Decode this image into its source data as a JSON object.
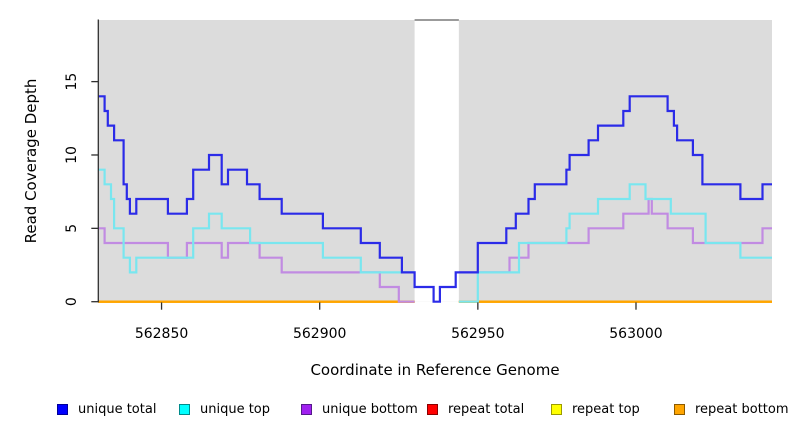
{
  "chart_data": {
    "type": "step-line",
    "xlabel": "Coordinate in Reference Genome",
    "ylabel": "Read Coverage Depth",
    "x_ticks": [
      562850,
      562900,
      562950,
      563000
    ],
    "y_ticks": [
      0,
      5,
      10,
      15
    ],
    "xlim": [
      562830,
      563043
    ],
    "ylim": [
      0,
      19.2
    ],
    "plot_background": "#DCDCDC",
    "gap": {
      "start": 562930,
      "end": 562944,
      "fill": "#FFFFFF",
      "top_border": "#7A7A7A"
    },
    "legend_position": "bottom",
    "series": [
      {
        "name": "repeat total",
        "color": "#FF0000",
        "width": 2.0,
        "segments": [
          [
            [
              562830,
              0
            ],
            [
              562930,
              0
            ]
          ],
          [
            [
              562944,
              0
            ],
            [
              563043,
              0
            ]
          ]
        ]
      },
      {
        "name": "repeat top",
        "color": "#FFFF00",
        "width": 2.0,
        "segments": [
          [
            [
              562830,
              0
            ],
            [
              562930,
              0
            ]
          ],
          [
            [
              562944,
              0
            ],
            [
              563043,
              0
            ]
          ]
        ]
      },
      {
        "name": "repeat bottom",
        "color": "#FFA500",
        "width": 2.4,
        "segments": [
          [
            [
              562830,
              0
            ],
            [
              562930,
              0
            ]
          ],
          [
            [
              562944,
              0
            ],
            [
              563043,
              0
            ]
          ]
        ]
      },
      {
        "name": "unique bottom",
        "color": "#C18BE2",
        "width": 2.2,
        "segments": [
          [
            [
              562830,
              5
            ],
            [
              562832,
              4
            ],
            [
              562852,
              3
            ],
            [
              562858,
              4
            ],
            [
              562869,
              3
            ],
            [
              562871,
              4
            ],
            [
              562881,
              3
            ],
            [
              562888,
              2
            ],
            [
              562919,
              1
            ],
            [
              562925,
              0
            ],
            [
              562930,
              0
            ]
          ],
          [
            [
              562944,
              2
            ],
            [
              562960,
              3
            ],
            [
              562966,
              4
            ],
            [
              562985,
              5
            ],
            [
              562996,
              6
            ],
            [
              563004,
              7
            ],
            [
              563005,
              6
            ],
            [
              563010,
              5
            ],
            [
              563018,
              4
            ],
            [
              563040,
              5
            ],
            [
              563043,
              5
            ]
          ]
        ]
      },
      {
        "name": "unique top",
        "color": "#79E6EF",
        "width": 2.2,
        "segments": [
          [
            [
              562830,
              9
            ],
            [
              562832,
              8
            ],
            [
              562834,
              7
            ],
            [
              562835,
              5
            ],
            [
              562838,
              3
            ],
            [
              562840,
              2
            ],
            [
              562842,
              3
            ],
            [
              562860,
              5
            ],
            [
              562865,
              6
            ],
            [
              562869,
              5
            ],
            [
              562878,
              4
            ],
            [
              562901,
              3
            ],
            [
              562913,
              2
            ],
            [
              562930,
              2
            ]
          ],
          [
            [
              562944,
              0
            ],
            [
              562950,
              2
            ],
            [
              562963,
              4
            ],
            [
              562978,
              5
            ],
            [
              562979,
              6
            ],
            [
              562988,
              7
            ],
            [
              562998,
              8
            ],
            [
              563003,
              7
            ],
            [
              563011,
              6
            ],
            [
              563022,
              4
            ],
            [
              563033,
              3
            ],
            [
              563043,
              3
            ]
          ]
        ]
      },
      {
        "name": "unique total",
        "color": "#2B2BE8",
        "width": 2.2,
        "segments": [
          [
            [
              562830,
              14
            ],
            [
              562832,
              13
            ],
            [
              562833,
              12
            ],
            [
              562835,
              11
            ],
            [
              562838,
              8
            ],
            [
              562839,
              7
            ],
            [
              562840,
              6
            ],
            [
              562842,
              7
            ],
            [
              562852,
              6
            ],
            [
              562858,
              7
            ],
            [
              562860,
              9
            ],
            [
              562865,
              10
            ],
            [
              562869,
              8
            ],
            [
              562871,
              9
            ],
            [
              562877,
              8
            ],
            [
              562881,
              7
            ],
            [
              562888,
              6
            ],
            [
              562901,
              5
            ],
            [
              562913,
              4
            ],
            [
              562919,
              3
            ],
            [
              562926,
              2
            ],
            [
              562930,
              1
            ],
            [
              562936,
              0
            ],
            [
              562938,
              1
            ],
            [
              562943,
              2
            ],
            [
              562950,
              4
            ],
            [
              562959,
              5
            ],
            [
              562962,
              6
            ],
            [
              562966,
              7
            ],
            [
              562968,
              8
            ],
            [
              562978,
              9
            ],
            [
              562979,
              10
            ],
            [
              562985,
              11
            ],
            [
              562988,
              12
            ],
            [
              562996,
              13
            ],
            [
              562998,
              14
            ],
            [
              563010,
              13
            ],
            [
              563012,
              12
            ],
            [
              563013,
              11
            ],
            [
              563018,
              10
            ],
            [
              563021,
              8
            ],
            [
              563033,
              7
            ],
            [
              563040,
              8
            ],
            [
              563043,
              8
            ]
          ]
        ]
      }
    ]
  },
  "legend": {
    "items": [
      {
        "label": "unique total",
        "fill": "#0000FF",
        "border": "#000099"
      },
      {
        "label": "unique top",
        "fill": "#00FFFF",
        "border": "#008B8B"
      },
      {
        "label": "unique bottom",
        "fill": "#A020F0",
        "border": "#551A8B"
      },
      {
        "label": "repeat total",
        "fill": "#FF0000",
        "border": "#8B0000"
      },
      {
        "label": "repeat top",
        "fill": "#FFFF00",
        "border": "#9B9B00"
      },
      {
        "label": "repeat bottom",
        "fill": "#FFA500",
        "border": "#8B5A00"
      }
    ]
  }
}
